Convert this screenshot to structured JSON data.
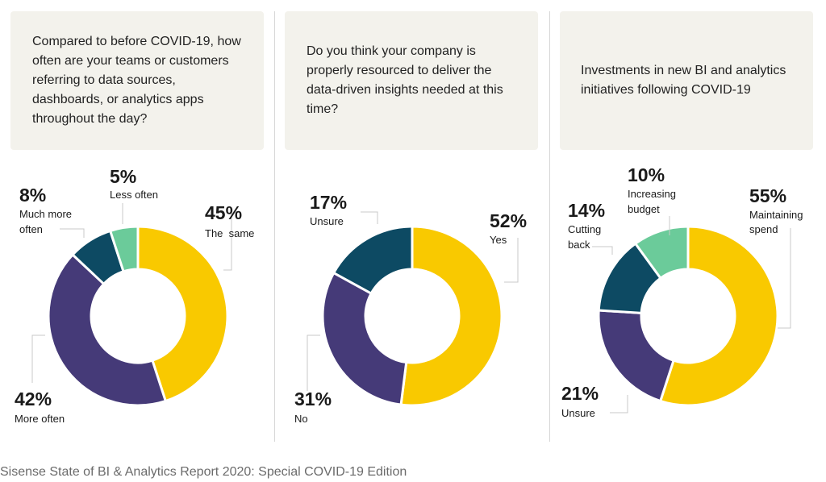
{
  "chart_data": [
    {
      "type": "pie",
      "title": "Compared to before COVID-19, how often are your teams or customers referring to data sources, dashboards, or analytics apps throughout the day?",
      "categories": [
        "The  same",
        "More often",
        "Much more often",
        "Less often"
      ],
      "values": [
        45,
        42,
        8,
        5
      ],
      "labels": [
        "45%",
        "42%",
        "8%",
        "5%"
      ],
      "colors": [
        "#f9c900",
        "#453a78",
        "#0d4a63",
        "#6bcb9a"
      ]
    },
    {
      "type": "pie",
      "title": "Do you think your company is properly resourced to deliver the data-driven insights needed at this time?",
      "categories": [
        "Yes",
        "No",
        "Unsure"
      ],
      "values": [
        52,
        31,
        17
      ],
      "labels": [
        "52%",
        "31%",
        "17%"
      ],
      "colors": [
        "#f9c900",
        "#453a78",
        "#0d4a63"
      ]
    },
    {
      "type": "pie",
      "title": "Investments in new BI and analytics initiatives following COVID-19",
      "categories": [
        "Maintaining spend",
        "Unsure",
        "Cutting back",
        "Increasing budget"
      ],
      "values": [
        55,
        21,
        14,
        10
      ],
      "labels": [
        "55%",
        "21%",
        "14%",
        "10%"
      ],
      "colors": [
        "#f9c900",
        "#453a78",
        "#0d4a63",
        "#6bcb9a"
      ]
    }
  ],
  "footer": "Sisense State of BI & Analytics Report 2020: Special COVID-19 Edition"
}
